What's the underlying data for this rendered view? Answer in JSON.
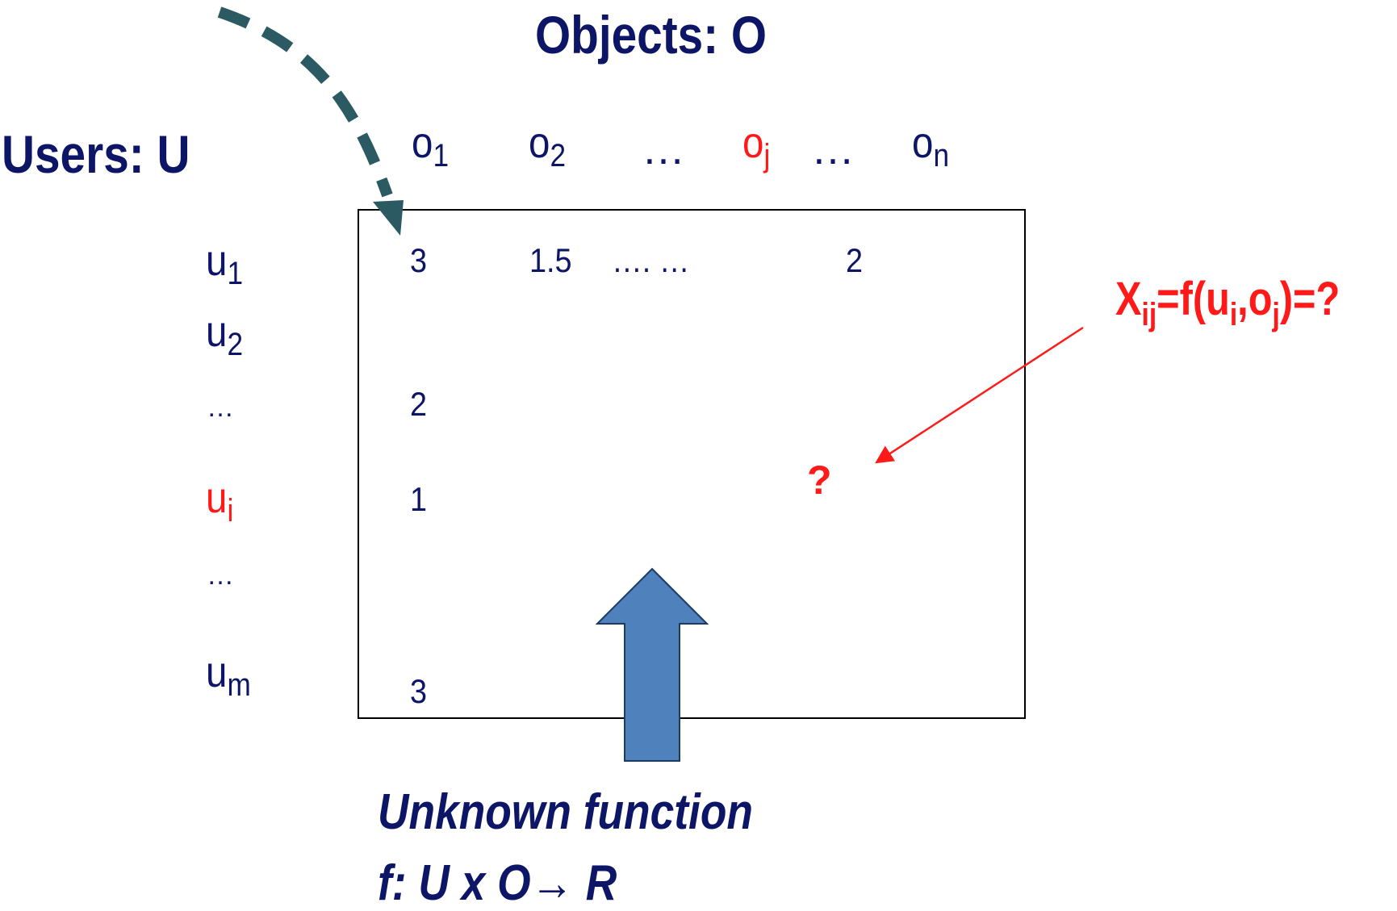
{
  "headings": {
    "objects": "Objects: O",
    "users": "Users: U"
  },
  "columns": {
    "o1": {
      "base": "o",
      "sub": "1"
    },
    "o2": {
      "base": "o",
      "sub": "2"
    },
    "dots_a": "…",
    "oj": {
      "base": "o",
      "sub": "j"
    },
    "dots_b": "…",
    "on": {
      "base": "o",
      "sub": "n"
    }
  },
  "rows": {
    "u1": {
      "base": "u",
      "sub": "1"
    },
    "u2": {
      "base": "u",
      "sub": "2"
    },
    "dots_a": "…",
    "ui": {
      "base": "u",
      "sub": "i"
    },
    "dots_b": "…",
    "um": {
      "base": "u",
      "sub": "m"
    }
  },
  "cells": {
    "r1_c1": "3",
    "r1_c2": "1.5",
    "r1_dots": "…. …",
    "r1_cn": "2",
    "r3_c1": "2",
    "ri_c1": "1",
    "rm_c1": "3",
    "unknown": "?"
  },
  "formula": {
    "x": "X",
    "x_sub": "ij",
    "mid1": "=f(u",
    "u_sub": "i",
    "mid2": ",o",
    "o_sub": "j",
    "end": ")=?"
  },
  "caption": {
    "line1": "Unknown function",
    "line2": "f: U x O→ R"
  },
  "colors": {
    "navy": "#0d1566",
    "red": "#ff1a1a",
    "teal": "#2b5a63",
    "arrow_fill": "#4f81bd",
    "arrow_stroke": "#1f3a60"
  }
}
